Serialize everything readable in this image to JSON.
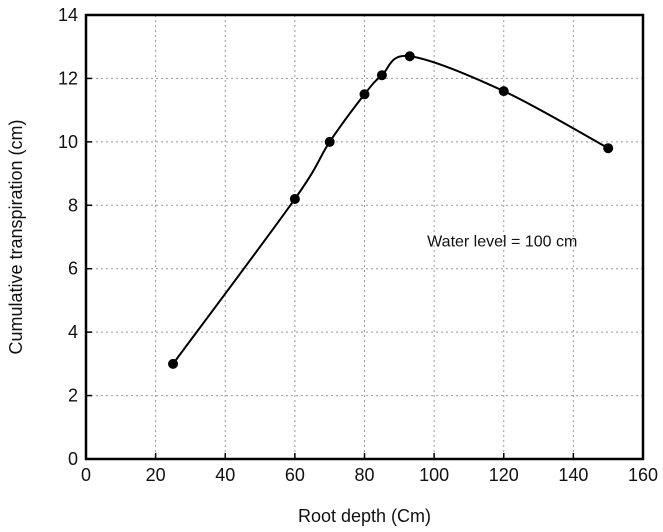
{
  "chart_data": {
    "type": "line",
    "title": "",
    "xlabel": "Root depth (Cm)",
    "ylabel": "Cumulative transpiration (cm)",
    "xlim": [
      0,
      160
    ],
    "ylim": [
      0,
      14
    ],
    "xticks": [
      0,
      20,
      40,
      60,
      80,
      100,
      120,
      140,
      160
    ],
    "yticks": [
      0,
      2,
      4,
      6,
      8,
      10,
      12,
      14
    ],
    "grid": true,
    "grid_style": "dotted",
    "legend": "none",
    "series": [
      {
        "x": [
          25,
          60,
          70,
          80,
          85,
          93,
          120,
          150
        ],
        "y": [
          3.0,
          8.2,
          10.0,
          11.5,
          12.1,
          12.7,
          11.6,
          9.8
        ],
        "marker": "filled-circle",
        "line": "smooth",
        "color": "#000000"
      }
    ],
    "annotations": [
      {
        "text": "Water level  =  100 cm",
        "x": 98,
        "y": 6.7
      }
    ]
  }
}
